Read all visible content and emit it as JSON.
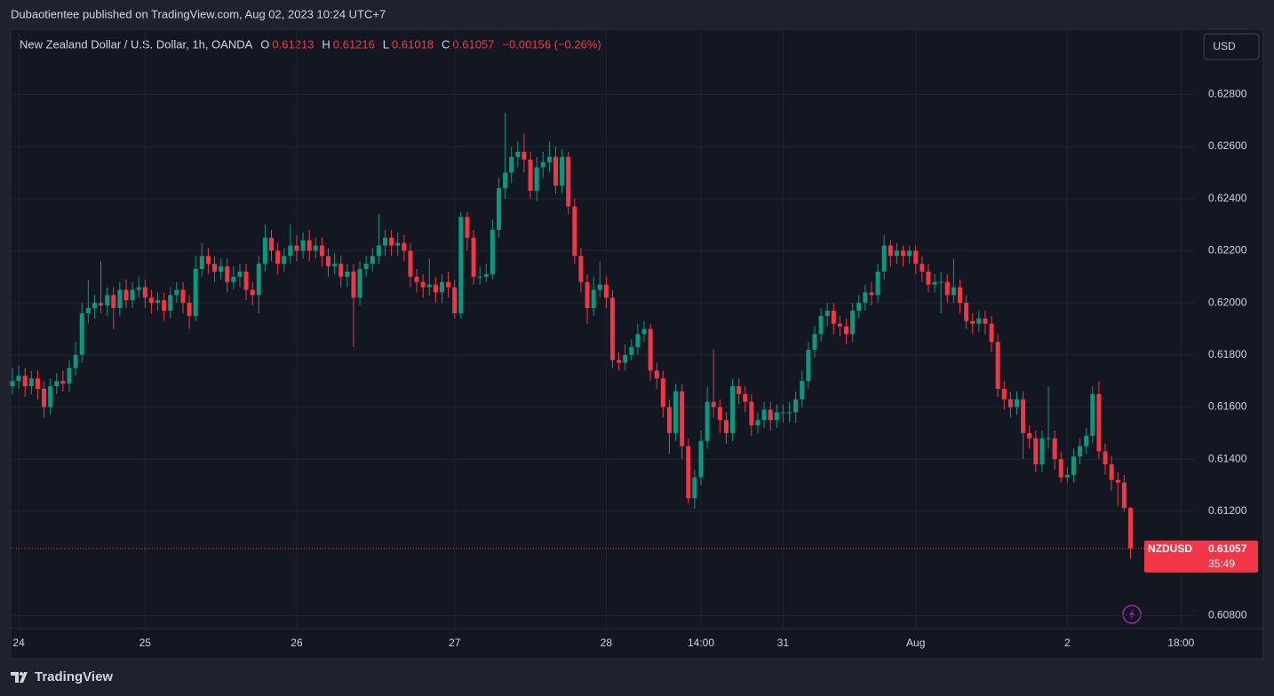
{
  "header": {
    "publisher": "Dubaotientee published on TradingView.com, Aug 02, 2023 10:24 UTC+7",
    "logo": "TradingView"
  },
  "chart_data": {
    "type": "candlestick",
    "title": "New Zealand Dollar / U.S. Dollar, 1h, OANDA",
    "ohlc_labels": [
      "O",
      "H",
      "L",
      "C"
    ],
    "change": "−0.00156 (−0.26%)",
    "currency": "USD",
    "symbol": "NZDUSD",
    "countdown": "35:49",
    "up_color": "#089981",
    "down_color": "#f23645",
    "grid": true,
    "ylim": [
      0.6075,
      0.6305
    ],
    "yticks": [
      {
        "value": 0.608,
        "label": "0.60800"
      },
      {
        "value": 0.612,
        "label": "0.61200"
      },
      {
        "value": 0.614,
        "label": "0.61400"
      },
      {
        "value": 0.616,
        "label": "0.61600"
      },
      {
        "value": 0.618,
        "label": "0.61800"
      },
      {
        "value": 0.62,
        "label": "0.62000"
      },
      {
        "value": 0.622,
        "label": "0.62200"
      },
      {
        "value": 0.624,
        "label": "0.62400"
      },
      {
        "value": 0.626,
        "label": "0.62600"
      },
      {
        "value": 0.628,
        "label": "0.62800"
      }
    ],
    "xticks": [
      {
        "value": 1,
        "label": "24"
      },
      {
        "value": 21,
        "label": "25"
      },
      {
        "value": 45,
        "label": "26"
      },
      {
        "value": 70,
        "label": "27"
      },
      {
        "value": 94,
        "label": "28"
      },
      {
        "value": 109,
        "label": "14:00"
      },
      {
        "value": 122,
        "label": "31"
      },
      {
        "value": 143,
        "label": "Aug"
      },
      {
        "value": 167,
        "label": "2"
      },
      {
        "value": 185,
        "label": "18:00"
      }
    ],
    "values": [
      [
        0.6168,
        0.6175,
        0.6165,
        0.617
      ],
      [
        0.617,
        0.6176,
        0.6167,
        0.6172
      ],
      [
        0.6172,
        0.6175,
        0.6164,
        0.6168
      ],
      [
        0.6168,
        0.6174,
        0.6165,
        0.6171
      ],
      [
        0.6171,
        0.6174,
        0.6163,
        0.6167
      ],
      [
        0.6167,
        0.617,
        0.6156,
        0.616
      ],
      [
        0.616,
        0.6171,
        0.6157,
        0.6168
      ],
      [
        0.6168,
        0.6173,
        0.6165,
        0.617
      ],
      [
        0.617,
        0.6174,
        0.6166,
        0.6169
      ],
      [
        0.6169,
        0.6178,
        0.6166,
        0.6175
      ],
      [
        0.6175,
        0.6185,
        0.6172,
        0.618
      ],
      [
        0.618,
        0.62,
        0.6177,
        0.6196
      ],
      [
        0.6196,
        0.6209,
        0.6192,
        0.6198
      ],
      [
        0.6198,
        0.6203,
        0.6194,
        0.62
      ],
      [
        0.62,
        0.6216,
        0.6196,
        0.6199
      ],
      [
        0.6199,
        0.6206,
        0.6195,
        0.6203
      ],
      [
        0.6203,
        0.6206,
        0.619,
        0.6198
      ],
      [
        0.6198,
        0.6208,
        0.6195,
        0.6205
      ],
      [
        0.6205,
        0.6209,
        0.6198,
        0.6201
      ],
      [
        0.6201,
        0.6208,
        0.6198,
        0.6205
      ],
      [
        0.6205,
        0.621,
        0.6202,
        0.6206
      ],
      [
        0.6206,
        0.6209,
        0.6198,
        0.6202
      ],
      [
        0.6202,
        0.6205,
        0.6196,
        0.62
      ],
      [
        0.62,
        0.6204,
        0.6197,
        0.6201
      ],
      [
        0.6201,
        0.6204,
        0.6193,
        0.6197
      ],
      [
        0.6197,
        0.6206,
        0.6194,
        0.6203
      ],
      [
        0.6203,
        0.6208,
        0.62,
        0.6205
      ],
      [
        0.6205,
        0.6208,
        0.6196,
        0.62
      ],
      [
        0.62,
        0.6203,
        0.619,
        0.6195
      ],
      [
        0.6195,
        0.6218,
        0.6193,
        0.6213
      ],
      [
        0.6213,
        0.6223,
        0.621,
        0.6218
      ],
      [
        0.6218,
        0.6221,
        0.6211,
        0.6215
      ],
      [
        0.6215,
        0.6218,
        0.6208,
        0.6212
      ],
      [
        0.6212,
        0.6217,
        0.6209,
        0.6214
      ],
      [
        0.6214,
        0.6217,
        0.6204,
        0.6208
      ],
      [
        0.6208,
        0.6214,
        0.6205,
        0.621
      ],
      [
        0.621,
        0.6215,
        0.6206,
        0.6212
      ],
      [
        0.6212,
        0.6215,
        0.6201,
        0.6205
      ],
      [
        0.6205,
        0.6208,
        0.6199,
        0.6203
      ],
      [
        0.6203,
        0.6218,
        0.6196,
        0.6215
      ],
      [
        0.6215,
        0.623,
        0.6212,
        0.6225
      ],
      [
        0.6225,
        0.6228,
        0.6216,
        0.622
      ],
      [
        0.622,
        0.6223,
        0.6211,
        0.6215
      ],
      [
        0.6215,
        0.6221,
        0.6212,
        0.6218
      ],
      [
        0.6218,
        0.623,
        0.6215,
        0.6222
      ],
      [
        0.6222,
        0.6226,
        0.6216,
        0.622
      ],
      [
        0.622,
        0.6227,
        0.6217,
        0.6224
      ],
      [
        0.6224,
        0.6228,
        0.6216,
        0.622
      ],
      [
        0.622,
        0.6225,
        0.6217,
        0.6222
      ],
      [
        0.6222,
        0.6225,
        0.6214,
        0.6218
      ],
      [
        0.6218,
        0.6221,
        0.621,
        0.6214
      ],
      [
        0.6214,
        0.6219,
        0.6211,
        0.6215
      ],
      [
        0.6215,
        0.6218,
        0.6206,
        0.621
      ],
      [
        0.621,
        0.6215,
        0.6206,
        0.6212
      ],
      [
        0.6212,
        0.6215,
        0.6183,
        0.6202
      ],
      [
        0.6202,
        0.6216,
        0.6199,
        0.6213
      ],
      [
        0.6213,
        0.6218,
        0.621,
        0.6215
      ],
      [
        0.6215,
        0.6221,
        0.6212,
        0.6218
      ],
      [
        0.6218,
        0.6234,
        0.6215,
        0.6222
      ],
      [
        0.6222,
        0.6228,
        0.6218,
        0.6225
      ],
      [
        0.6225,
        0.6228,
        0.6218,
        0.6222
      ],
      [
        0.6222,
        0.6227,
        0.6218,
        0.6223
      ],
      [
        0.6223,
        0.6226,
        0.6216,
        0.622
      ],
      [
        0.622,
        0.6223,
        0.6206,
        0.621
      ],
      [
        0.621,
        0.6213,
        0.6204,
        0.6208
      ],
      [
        0.6208,
        0.6211,
        0.6202,
        0.6206
      ],
      [
        0.6206,
        0.6217,
        0.6203,
        0.6207
      ],
      [
        0.6207,
        0.621,
        0.62,
        0.6204
      ],
      [
        0.6204,
        0.6211,
        0.62,
        0.6208
      ],
      [
        0.6208,
        0.6212,
        0.6202,
        0.6206
      ],
      [
        0.6206,
        0.6209,
        0.6194,
        0.6196
      ],
      [
        0.6196,
        0.6235,
        0.6194,
        0.6233
      ],
      [
        0.6233,
        0.6235,
        0.622,
        0.6225
      ],
      [
        0.6225,
        0.6228,
        0.6207,
        0.621
      ],
      [
        0.621,
        0.6214,
        0.6207,
        0.621
      ],
      [
        0.621,
        0.6215,
        0.6208,
        0.6211
      ],
      [
        0.6211,
        0.6232,
        0.6209,
        0.6228
      ],
      [
        0.6228,
        0.6248,
        0.6225,
        0.6244
      ],
      [
        0.6244,
        0.6273,
        0.624,
        0.625
      ],
      [
        0.625,
        0.626,
        0.6246,
        0.6256
      ],
      [
        0.6256,
        0.6262,
        0.6252,
        0.6258
      ],
      [
        0.6258,
        0.6265,
        0.625,
        0.6255
      ],
      [
        0.6255,
        0.6258,
        0.624,
        0.6243
      ],
      [
        0.6243,
        0.6256,
        0.6239,
        0.6252
      ],
      [
        0.6252,
        0.6258,
        0.6248,
        0.6254
      ],
      [
        0.6254,
        0.6262,
        0.625,
        0.6256
      ],
      [
        0.6256,
        0.626,
        0.6242,
        0.6245
      ],
      [
        0.6245,
        0.6259,
        0.6242,
        0.6256
      ],
      [
        0.6256,
        0.6258,
        0.6234,
        0.6237
      ],
      [
        0.6237,
        0.624,
        0.6215,
        0.6218
      ],
      [
        0.6218,
        0.6221,
        0.6204,
        0.6208
      ],
      [
        0.6208,
        0.6211,
        0.6192,
        0.6198
      ],
      [
        0.6198,
        0.621,
        0.6195,
        0.6205
      ],
      [
        0.6205,
        0.6216,
        0.6202,
        0.6207
      ],
      [
        0.6207,
        0.621,
        0.6198,
        0.6202
      ],
      [
        0.6202,
        0.6205,
        0.6175,
        0.6178
      ],
      [
        0.6178,
        0.6181,
        0.6174,
        0.6177
      ],
      [
        0.6177,
        0.6184,
        0.6174,
        0.618
      ],
      [
        0.618,
        0.6186,
        0.6178,
        0.6183
      ],
      [
        0.6183,
        0.6192,
        0.618,
        0.6188
      ],
      [
        0.6188,
        0.6193,
        0.6185,
        0.619
      ],
      [
        0.619,
        0.6192,
        0.617,
        0.6174
      ],
      [
        0.6174,
        0.6177,
        0.6167,
        0.6171
      ],
      [
        0.6171,
        0.6174,
        0.6156,
        0.616
      ],
      [
        0.616,
        0.6163,
        0.6142,
        0.615
      ],
      [
        0.615,
        0.6169,
        0.6147,
        0.6166
      ],
      [
        0.6166,
        0.6169,
        0.614,
        0.6145
      ],
      [
        0.6145,
        0.6148,
        0.6123,
        0.6125
      ],
      [
        0.6125,
        0.6136,
        0.6121,
        0.6133
      ],
      [
        0.6133,
        0.6151,
        0.613,
        0.6147
      ],
      [
        0.6147,
        0.6168,
        0.6144,
        0.6162
      ],
      [
        0.6162,
        0.6182,
        0.6156,
        0.616
      ],
      [
        0.616,
        0.6163,
        0.615,
        0.6155
      ],
      [
        0.6155,
        0.6158,
        0.6146,
        0.615
      ],
      [
        0.615,
        0.6171,
        0.6147,
        0.6168
      ],
      [
        0.6168,
        0.6171,
        0.6161,
        0.6165
      ],
      [
        0.6165,
        0.6168,
        0.6158,
        0.6162
      ],
      [
        0.6162,
        0.6165,
        0.6149,
        0.6153
      ],
      [
        0.6153,
        0.6158,
        0.615,
        0.6155
      ],
      [
        0.6155,
        0.6162,
        0.6152,
        0.6159
      ],
      [
        0.6159,
        0.6162,
        0.6151,
        0.6155
      ],
      [
        0.6155,
        0.6161,
        0.6152,
        0.6158
      ],
      [
        0.6158,
        0.6161,
        0.6154,
        0.6158
      ],
      [
        0.6158,
        0.6162,
        0.6154,
        0.6158
      ],
      [
        0.6158,
        0.6166,
        0.6154,
        0.6163
      ],
      [
        0.6163,
        0.6174,
        0.616,
        0.617
      ],
      [
        0.617,
        0.6185,
        0.6167,
        0.6182
      ],
      [
        0.6182,
        0.6191,
        0.6179,
        0.6188
      ],
      [
        0.6188,
        0.6198,
        0.6185,
        0.6195
      ],
      [
        0.6195,
        0.62,
        0.6191,
        0.6197
      ],
      [
        0.6197,
        0.62,
        0.6188,
        0.6192
      ],
      [
        0.6192,
        0.6195,
        0.6187,
        0.6191
      ],
      [
        0.6191,
        0.6194,
        0.6184,
        0.6188
      ],
      [
        0.6188,
        0.62,
        0.6185,
        0.6197
      ],
      [
        0.6197,
        0.6203,
        0.6194,
        0.62
      ],
      [
        0.62,
        0.6207,
        0.6197,
        0.6204
      ],
      [
        0.6204,
        0.6208,
        0.6199,
        0.6203
      ],
      [
        0.6203,
        0.6215,
        0.62,
        0.6212
      ],
      [
        0.6212,
        0.6226,
        0.6209,
        0.6222
      ],
      [
        0.6222,
        0.6224,
        0.6214,
        0.6218
      ],
      [
        0.6218,
        0.6223,
        0.6215,
        0.622
      ],
      [
        0.622,
        0.6222,
        0.6214,
        0.6218
      ],
      [
        0.6218,
        0.6222,
        0.6215,
        0.622
      ],
      [
        0.622,
        0.6222,
        0.6211,
        0.6215
      ],
      [
        0.6215,
        0.6218,
        0.6208,
        0.6212
      ],
      [
        0.6212,
        0.6215,
        0.6204,
        0.6207
      ],
      [
        0.6207,
        0.6211,
        0.6204,
        0.6208
      ],
      [
        0.6208,
        0.6212,
        0.6196,
        0.6208
      ],
      [
        0.6208,
        0.6211,
        0.62,
        0.6203
      ],
      [
        0.6203,
        0.6217,
        0.62,
        0.6206
      ],
      [
        0.6206,
        0.6209,
        0.6196,
        0.62
      ],
      [
        0.62,
        0.6203,
        0.619,
        0.6193
      ],
      [
        0.6193,
        0.6196,
        0.6188,
        0.6192
      ],
      [
        0.6192,
        0.6197,
        0.6189,
        0.6194
      ],
      [
        0.6194,
        0.6197,
        0.6188,
        0.6192
      ],
      [
        0.6192,
        0.6195,
        0.6181,
        0.6185
      ],
      [
        0.6185,
        0.6188,
        0.6164,
        0.6167
      ],
      [
        0.6167,
        0.617,
        0.6159,
        0.6163
      ],
      [
        0.6163,
        0.6166,
        0.6156,
        0.616
      ],
      [
        0.616,
        0.6166,
        0.6157,
        0.6163
      ],
      [
        0.6163,
        0.6166,
        0.614,
        0.615
      ],
      [
        0.615,
        0.6153,
        0.6144,
        0.6148
      ],
      [
        0.6148,
        0.6151,
        0.6135,
        0.6138
      ],
      [
        0.6138,
        0.6151,
        0.6135,
        0.6148
      ],
      [
        0.6148,
        0.6168,
        0.6144,
        0.6148
      ],
      [
        0.6148,
        0.6151,
        0.6136,
        0.614
      ],
      [
        0.614,
        0.6143,
        0.6131,
        0.6133
      ],
      [
        0.6133,
        0.6137,
        0.6131,
        0.6134
      ],
      [
        0.6134,
        0.6144,
        0.6131,
        0.6141
      ],
      [
        0.6141,
        0.6148,
        0.6138,
        0.6145
      ],
      [
        0.6145,
        0.6152,
        0.6142,
        0.6149
      ],
      [
        0.6149,
        0.6168,
        0.6146,
        0.6165
      ],
      [
        0.6165,
        0.617,
        0.614,
        0.6143
      ],
      [
        0.6143,
        0.6146,
        0.6134,
        0.6138
      ],
      [
        0.6138,
        0.6141,
        0.6128,
        0.6132
      ],
      [
        0.6132,
        0.6135,
        0.6122,
        0.6131
      ],
      [
        0.6131,
        0.6134,
        0.612,
        0.61213
      ],
      [
        0.61213,
        0.61216,
        0.61018,
        0.61057
      ]
    ]
  }
}
